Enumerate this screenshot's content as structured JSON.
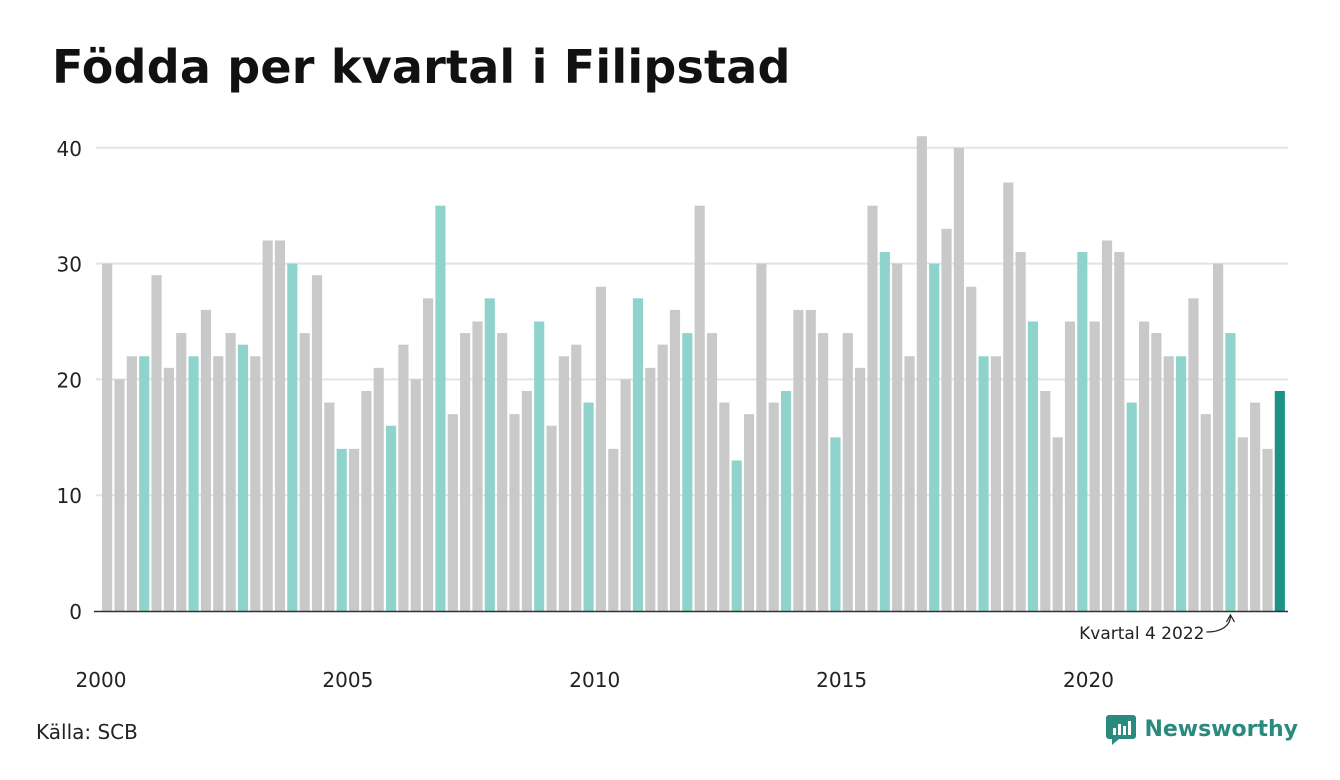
{
  "chart_data": {
    "type": "bar",
    "title": "Födda per kvartal i Filipstad",
    "xlabel": "",
    "ylabel": "",
    "ylim": [
      0,
      43
    ],
    "yticks": [
      0,
      10,
      20,
      30,
      40
    ],
    "xtick_labels": [
      "2000",
      "2005",
      "2010",
      "2015",
      "2020"
    ],
    "grid": true,
    "start_year": 2000,
    "quarters_per_year": 4,
    "values": [
      30,
      20,
      22,
      22,
      29,
      21,
      24,
      22,
      26,
      22,
      24,
      23,
      22,
      32,
      32,
      30,
      24,
      29,
      18,
      14,
      14,
      19,
      21,
      16,
      23,
      20,
      27,
      35,
      17,
      24,
      25,
      27,
      24,
      17,
      19,
      25,
      16,
      22,
      23,
      18,
      28,
      14,
      20,
      27,
      21,
      23,
      26,
      24,
      35,
      24,
      18,
      13,
      17,
      30,
      18,
      19,
      26,
      26,
      24,
      15,
      24,
      21,
      35,
      31,
      30,
      22,
      41,
      30,
      33,
      40,
      28,
      22,
      22,
      37,
      31,
      25,
      19,
      15,
      25,
      31,
      25,
      32,
      31,
      18,
      25,
      24,
      22,
      22,
      27,
      17,
      30,
      24,
      15,
      18,
      14,
      19
    ],
    "annotation": {
      "label": "Kvartal 4 2022",
      "index": 91
    },
    "colors": {
      "default": "#c9c9c9",
      "quarter4": "#8fd4cc",
      "latest": "#1d9388",
      "grid": "#e3e3e3",
      "axis": "#333333"
    }
  },
  "footer": {
    "source": "Källa: SCB",
    "brand": "Newsworthy",
    "brand_icon": "newsworthy-logo-icon"
  }
}
